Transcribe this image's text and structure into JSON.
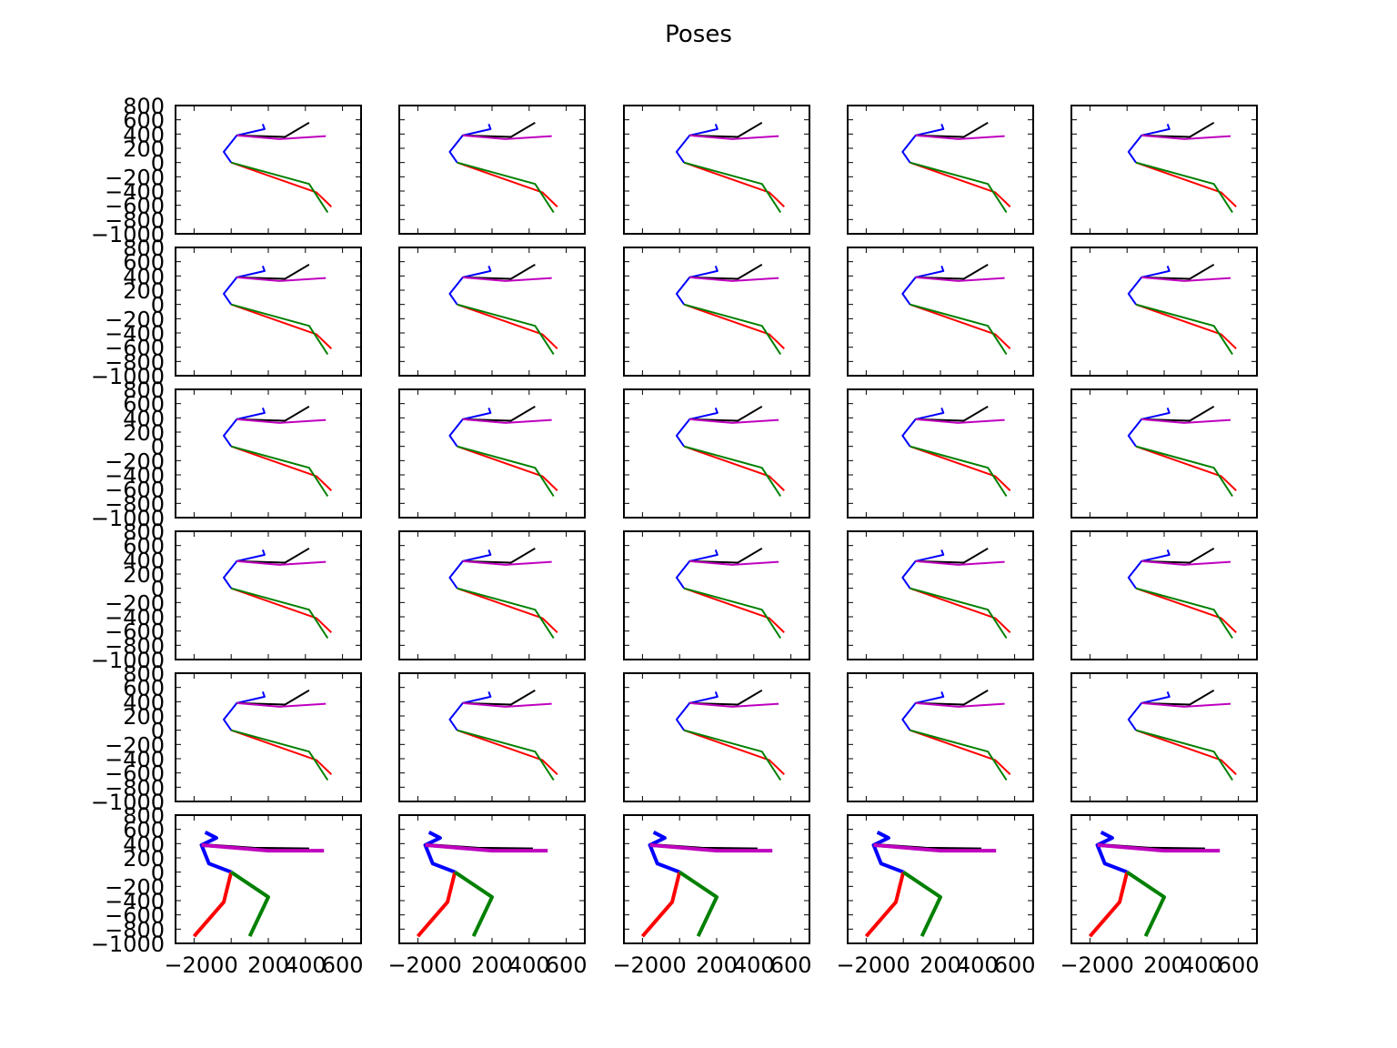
{
  "figure": {
    "title": "Poses",
    "background": "#ffffff",
    "rows": 6,
    "cols": 5
  },
  "chart_data": {
    "type": "line",
    "title": "Poses",
    "xlim": [
      -300,
      700
    ],
    "ylim": [
      -1000,
      800
    ],
    "xticks": [
      -200,
      0,
      200,
      400,
      600
    ],
    "xtick_labels": [
      "−200",
      "0",
      "200",
      "400",
      "600"
    ],
    "yticks": [
      -1000,
      -800,
      -600,
      -400,
      -200,
      0,
      200,
      400,
      600,
      800
    ],
    "ytick_labels": [
      "−1000",
      "−800",
      "−600",
      "−400",
      "−200",
      "0",
      "200",
      "400",
      "600",
      "800"
    ],
    "limb_colors": {
      "spine": "#0000ff",
      "left_arm": "#000000",
      "right_arm": "#bf00bf",
      "left_leg": "#ff0000",
      "right_leg": "#008000"
    },
    "grid": false,
    "legend": "none"
  }
}
